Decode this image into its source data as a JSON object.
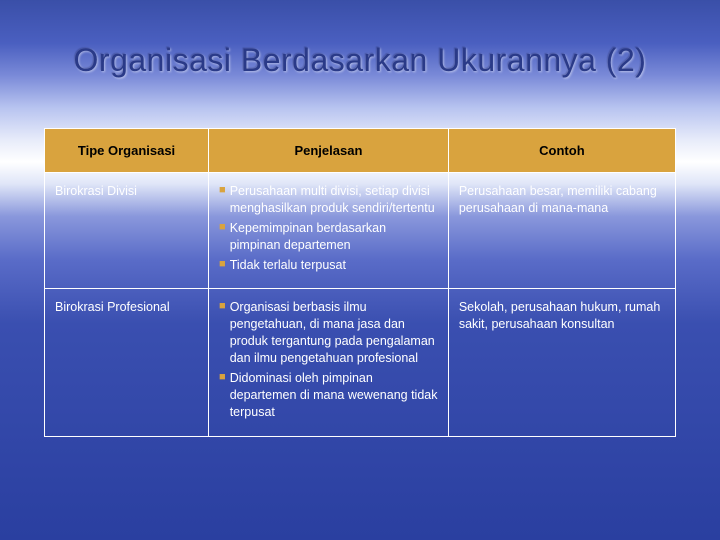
{
  "slide": {
    "title": "Organisasi Berdasarkan Ukurannya (2)",
    "background": {
      "gradient_stops": [
        "#3a4fa8",
        "#4a5fc0",
        "#7a8ad8",
        "#b8c4f0",
        "#e8ecfa",
        "#ffffff",
        "#e0e6f8",
        "#8a98dc",
        "#5a6cc8",
        "#3a4fb0",
        "#2a3fa0"
      ]
    },
    "title_style": {
      "fontsize": 32,
      "color": "#2a3a88"
    }
  },
  "table": {
    "type": "table",
    "header_bg": "#d9a33e",
    "header_text_color": "#000000",
    "body_text_color": "#ffffff",
    "border_color": "#ffffff",
    "bullet_color": "#d9a33e",
    "font_size_header": 13,
    "font_size_body": 12.5,
    "col_widths_pct": [
      26,
      38,
      36
    ],
    "columns": [
      "Tipe Organisasi",
      "Penjelasan",
      "Contoh"
    ],
    "rows": [
      {
        "type": "Birokrasi Divisi",
        "explanation_bullets": [
          "Perusahaan multi divisi, setiap divisi menghasilkan produk sendiri/tertentu",
          "Kepemimpinan berdasarkan pimpinan departemen",
          "Tidak terlalu terpusat"
        ],
        "example": "Perusahaan besar, memiliki cabang perusahaan di mana-mana"
      },
      {
        "type": "Birokrasi Profesional",
        "explanation_bullets": [
          "Organisasi berbasis ilmu pengetahuan, di mana jasa dan produk tergantung pada pengalaman dan ilmu pengetahuan profesional",
          "Didominasi oleh pimpinan departemen di mana wewenang tidak terpusat"
        ],
        "example": "Sekolah, perusahaan hukum, rumah sakit, perusahaan konsultan"
      }
    ]
  }
}
